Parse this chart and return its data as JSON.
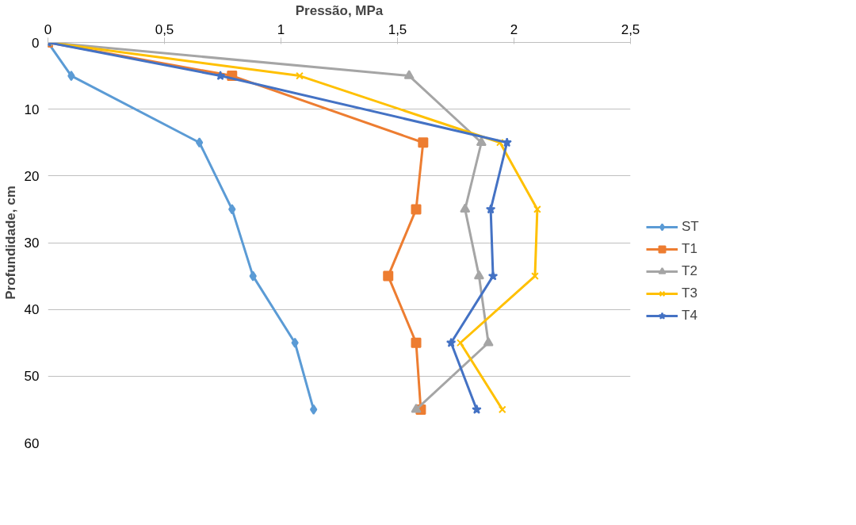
{
  "chart_data": {
    "type": "line",
    "xlabel": "Pressão, MPa",
    "ylabel": "Profundidade, cm",
    "xlim": [
      0,
      2.5
    ],
    "xticks": [
      0,
      {
        "value": 0.5,
        "label": "0,5"
      },
      1,
      {
        "value": 1.5,
        "label": "1,5"
      },
      2,
      {
        "value": 2.5,
        "label": "2,5"
      }
    ],
    "ylim": [
      60,
      0
    ],
    "yticks": [
      0,
      10,
      20,
      30,
      40,
      50,
      60
    ],
    "grid": "y",
    "legend": "right",
    "series": [
      {
        "name": "ST",
        "color": "#5b9bd5",
        "marker": "diamond",
        "x": [
          0,
          0.1,
          0.65,
          0.79,
          0.88,
          1.06,
          1.14
        ],
        "values": [
          0,
          5,
          15,
          25,
          35,
          45,
          55
        ]
      },
      {
        "name": "T1",
        "color": "#ed7d31",
        "marker": "square",
        "x": [
          0,
          0.79,
          1.61,
          1.58,
          1.46,
          1.58,
          1.6
        ],
        "values": [
          0,
          5,
          15,
          25,
          35,
          45,
          55
        ]
      },
      {
        "name": "T2",
        "color": "#a5a5a5",
        "marker": "triangle",
        "x": [
          0,
          1.55,
          1.86,
          1.79,
          1.85,
          1.89,
          1.58
        ],
        "values": [
          0,
          5,
          15,
          25,
          35,
          45,
          55
        ]
      },
      {
        "name": "T3",
        "color": "#ffc000",
        "marker": "cross",
        "x": [
          0,
          1.08,
          1.94,
          2.1,
          2.09,
          1.77,
          1.95
        ],
        "values": [
          0,
          5,
          15,
          25,
          35,
          45,
          55
        ]
      },
      {
        "name": "T4",
        "color": "#4472c4",
        "marker": "star",
        "x": [
          0,
          0.74,
          1.97,
          1.9,
          1.91,
          1.73,
          1.84
        ],
        "values": [
          0,
          5,
          15,
          25,
          35,
          45,
          55
        ]
      }
    ]
  }
}
